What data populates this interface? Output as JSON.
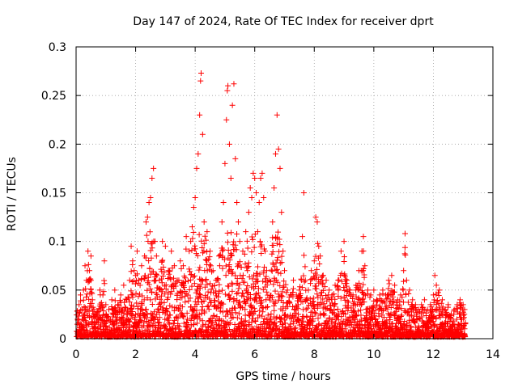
{
  "chart_data": {
    "type": "scatter",
    "title": "Day 147 of 2024, Rate Of TEC Index for receiver dprt",
    "xlabel": "GPS time / hours",
    "ylabel": "ROTI / TECUs",
    "xlim": [
      0,
      14
    ],
    "ylim": [
      0,
      0.3
    ],
    "xticks": [
      0,
      2,
      4,
      6,
      8,
      10,
      12,
      14
    ],
    "yticks": [
      0,
      0.05,
      0.1,
      0.15,
      0.2,
      0.25,
      0.3
    ],
    "xtick_labels": [
      "0",
      "2",
      "4",
      "6",
      "8",
      "10",
      "12",
      "14"
    ],
    "ytick_labels": [
      "0",
      "0.05",
      "0.1",
      "0.15",
      "0.2",
      "0.25",
      "0.3"
    ],
    "grid": true,
    "marker": "+",
    "color": "#ff0000",
    "series": [
      {
        "name": "ROTI",
        "points": [
          [
            0.05,
            0.02
          ],
          [
            0.1,
            0.035
          ],
          [
            0.15,
            0.045
          ],
          [
            0.2,
            0.03
          ],
          [
            0.25,
            0.05
          ],
          [
            0.3,
            0.075
          ],
          [
            0.35,
            0.06
          ],
          [
            0.4,
            0.09
          ],
          [
            0.45,
            0.07
          ],
          [
            0.5,
            0.085
          ],
          [
            0.55,
            0.04
          ],
          [
            0.6,
            0.03
          ],
          [
            0.7,
            0.025
          ],
          [
            0.8,
            0.05
          ],
          [
            0.9,
            0.045
          ],
          [
            0.95,
            0.08
          ],
          [
            1.0,
            0.035
          ],
          [
            1.1,
            0.03
          ],
          [
            1.2,
            0.04
          ],
          [
            1.3,
            0.05
          ],
          [
            1.4,
            0.035
          ],
          [
            1.5,
            0.045
          ],
          [
            1.6,
            0.055
          ],
          [
            1.7,
            0.04
          ],
          [
            1.8,
            0.06
          ],
          [
            1.85,
            0.095
          ],
          [
            1.9,
            0.08
          ],
          [
            1.95,
            0.07
          ],
          [
            2.0,
            0.065
          ],
          [
            2.05,
            0.09
          ],
          [
            2.1,
            0.06
          ],
          [
            2.15,
            0.055
          ],
          [
            2.2,
            0.075
          ],
          [
            2.3,
            0.085
          ],
          [
            2.35,
            0.12
          ],
          [
            2.4,
            0.125
          ],
          [
            2.45,
            0.14
          ],
          [
            2.5,
            0.145
          ],
          [
            2.55,
            0.165
          ],
          [
            2.6,
            0.175
          ],
          [
            2.65,
            0.1
          ],
          [
            2.7,
            0.085
          ],
          [
            2.8,
            0.06
          ],
          [
            2.9,
            0.1
          ],
          [
            3.0,
            0.095
          ],
          [
            3.1,
            0.07
          ],
          [
            3.2,
            0.09
          ],
          [
            3.3,
            0.075
          ],
          [
            3.4,
            0.06
          ],
          [
            3.5,
            0.08
          ],
          [
            3.6,
            0.075
          ],
          [
            3.7,
            0.105
          ],
          [
            3.8,
            0.09
          ],
          [
            3.85,
            0.1
          ],
          [
            3.9,
            0.115
          ],
          [
            3.95,
            0.135
          ],
          [
            4.0,
            0.145
          ],
          [
            4.05,
            0.175
          ],
          [
            4.1,
            0.19
          ],
          [
            4.15,
            0.23
          ],
          [
            4.18,
            0.265
          ],
          [
            4.2,
            0.273
          ],
          [
            4.25,
            0.21
          ],
          [
            4.3,
            0.12
          ],
          [
            4.4,
            0.11
          ],
          [
            4.5,
            0.09
          ],
          [
            4.6,
            0.07
          ],
          [
            4.7,
            0.06
          ],
          [
            4.8,
            0.085
          ],
          [
            4.9,
            0.12
          ],
          [
            4.95,
            0.14
          ],
          [
            5.0,
            0.18
          ],
          [
            5.05,
            0.225
          ],
          [
            5.08,
            0.255
          ],
          [
            5.1,
            0.26
          ],
          [
            5.15,
            0.2
          ],
          [
            5.2,
            0.165
          ],
          [
            5.25,
            0.24
          ],
          [
            5.3,
            0.262
          ],
          [
            5.35,
            0.185
          ],
          [
            5.4,
            0.14
          ],
          [
            5.45,
            0.12
          ],
          [
            5.5,
            0.1
          ],
          [
            5.6,
            0.09
          ],
          [
            5.7,
            0.11
          ],
          [
            5.8,
            0.13
          ],
          [
            5.85,
            0.155
          ],
          [
            5.9,
            0.145
          ],
          [
            5.95,
            0.17
          ],
          [
            6.0,
            0.165
          ],
          [
            6.05,
            0.15
          ],
          [
            6.1,
            0.11
          ],
          [
            6.15,
            0.14
          ],
          [
            6.2,
            0.165
          ],
          [
            6.25,
            0.17
          ],
          [
            6.3,
            0.145
          ],
          [
            6.35,
            0.09
          ],
          [
            6.4,
            0.07
          ],
          [
            6.5,
            0.06
          ],
          [
            6.6,
            0.12
          ],
          [
            6.65,
            0.155
          ],
          [
            6.7,
            0.19
          ],
          [
            6.75,
            0.23
          ],
          [
            6.8,
            0.195
          ],
          [
            6.85,
            0.175
          ],
          [
            6.9,
            0.13
          ],
          [
            6.95,
            0.09
          ],
          [
            7.0,
            0.07
          ],
          [
            7.1,
            0.05
          ],
          [
            7.2,
            0.045
          ],
          [
            7.3,
            0.06
          ],
          [
            7.4,
            0.045
          ],
          [
            7.5,
            0.05
          ],
          [
            7.6,
            0.105
          ],
          [
            7.65,
            0.15
          ],
          [
            7.7,
            0.06
          ],
          [
            7.8,
            0.05
          ],
          [
            7.9,
            0.07
          ],
          [
            8.0,
            0.08
          ],
          [
            8.05,
            0.125
          ],
          [
            8.1,
            0.12
          ],
          [
            8.15,
            0.095
          ],
          [
            8.2,
            0.085
          ],
          [
            8.3,
            0.065
          ],
          [
            8.4,
            0.06
          ],
          [
            8.5,
            0.05
          ],
          [
            8.6,
            0.045
          ],
          [
            8.7,
            0.055
          ],
          [
            8.8,
            0.06
          ],
          [
            8.9,
            0.09
          ],
          [
            9.0,
            0.1
          ],
          [
            9.1,
            0.06
          ],
          [
            9.2,
            0.05
          ],
          [
            9.3,
            0.045
          ],
          [
            9.4,
            0.055
          ],
          [
            9.5,
            0.07
          ],
          [
            9.6,
            0.09
          ],
          [
            9.65,
            0.105
          ],
          [
            9.7,
            0.075
          ],
          [
            9.8,
            0.05
          ],
          [
            9.9,
            0.045
          ],
          [
            10.0,
            0.05
          ],
          [
            10.1,
            0.04
          ],
          [
            10.2,
            0.045
          ],
          [
            10.3,
            0.05
          ],
          [
            10.4,
            0.045
          ],
          [
            10.5,
            0.06
          ],
          [
            10.6,
            0.065
          ],
          [
            10.7,
            0.055
          ],
          [
            10.8,
            0.04
          ],
          [
            10.9,
            0.045
          ],
          [
            11.0,
            0.07
          ],
          [
            11.05,
            0.108
          ],
          [
            11.1,
            0.06
          ],
          [
            11.2,
            0.05
          ],
          [
            11.3,
            0.04
          ],
          [
            11.4,
            0.035
          ],
          [
            11.5,
            0.03
          ],
          [
            11.6,
            0.035
          ],
          [
            11.7,
            0.04
          ],
          [
            11.8,
            0.03
          ],
          [
            11.9,
            0.035
          ],
          [
            12.0,
            0.045
          ],
          [
            12.05,
            0.065
          ],
          [
            12.1,
            0.055
          ],
          [
            12.2,
            0.05
          ],
          [
            12.3,
            0.04
          ],
          [
            12.4,
            0.03
          ],
          [
            12.5,
            0.035
          ],
          [
            12.6,
            0.025
          ],
          [
            12.7,
            0.03
          ],
          [
            12.8,
            0.035
          ],
          [
            12.9,
            0.04
          ],
          [
            13.0,
            0.035
          ],
          [
            13.05,
            0.03
          ]
        ]
      }
    ]
  }
}
